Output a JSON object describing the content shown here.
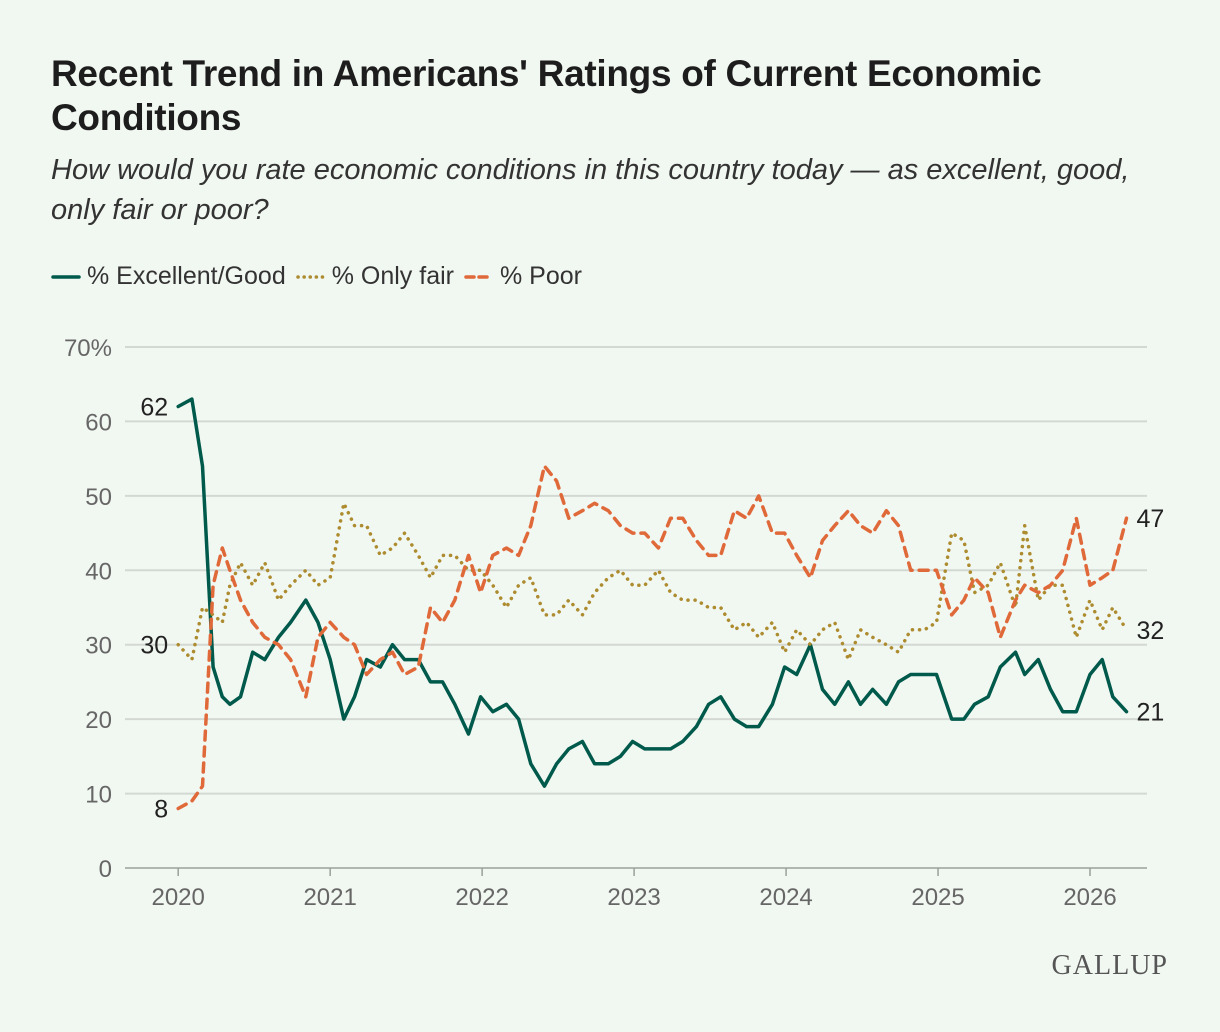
{
  "chart_data": {
    "type": "line",
    "title": "Recent Trend in Americans' Ratings of Current Economic Conditions",
    "subtitle": "How would you rate economic conditions in this country today — as excellent, good, only fair or poor?",
    "xlabel": "",
    "ylabel": "",
    "xlim": [
      2019.65,
      2026.375
    ],
    "ylim": [
      0,
      70
    ],
    "grid": true,
    "legend_position": "top-left",
    "x_ticks": [
      "2020",
      "2021",
      "2022",
      "2023",
      "2024",
      "2025",
      "2026"
    ],
    "y_ticks": [
      "0",
      "10",
      "20",
      "30",
      "40",
      "50",
      "60",
      "70%"
    ],
    "x": [
      2020.0,
      2020.09,
      2020.16,
      2020.23,
      2020.29,
      2020.34,
      2020.41,
      2020.49,
      2020.57,
      2020.66,
      2020.74,
      2020.84,
      2020.92,
      2021.0,
      2021.09,
      2021.16,
      2021.24,
      2021.33,
      2021.41,
      2021.49,
      2021.58,
      2021.66,
      2021.74,
      2021.82,
      2021.91,
      2021.99,
      2022.07,
      2022.16,
      2022.24,
      2022.32,
      2022.41,
      2022.49,
      2022.57,
      2022.66,
      2022.74,
      2022.83,
      2022.91,
      2022.99,
      2023.07,
      2023.16,
      2023.24,
      2023.32,
      2023.41,
      2023.49,
      2023.57,
      2023.66,
      2023.74,
      2023.82,
      2023.91,
      2023.99,
      2024.07,
      2024.16,
      2024.24,
      2024.32,
      2024.41,
      2024.49,
      2024.57,
      2024.66,
      2024.74,
      2024.82,
      2024.91,
      2024.99,
      2025.09,
      2025.17,
      2025.24,
      2025.33,
      2025.41,
      2025.51,
      2025.57,
      2025.66,
      2025.74,
      2025.82,
      2025.91,
      2026.0,
      2026.08,
      2026.15,
      2026.24
    ],
    "series": [
      {
        "name": "% Excellent/Good",
        "color": "#005a4c",
        "style": "solid",
        "start_label": "62",
        "end_label": "21",
        "values": [
          62,
          63,
          54,
          27,
          23,
          22,
          23,
          29,
          28,
          31,
          33,
          36,
          33,
          28,
          20,
          23,
          28,
          27,
          30,
          28,
          28,
          25,
          25,
          22,
          18,
          23,
          21,
          22,
          20,
          14,
          11,
          14,
          16,
          17,
          14,
          14,
          15,
          17,
          16,
          16,
          16,
          17,
          19,
          22,
          23,
          20,
          19,
          19,
          22,
          27,
          26,
          30,
          24,
          22,
          25,
          22,
          24,
          22,
          25,
          26,
          26,
          26,
          20,
          20,
          22,
          23,
          27,
          29,
          26,
          28,
          24,
          21,
          21,
          26,
          28,
          23,
          21
        ]
      },
      {
        "name": "% Only fair",
        "color": "#ad8b2f",
        "style": "dotted",
        "start_label": "30",
        "end_label": "32",
        "values": [
          30,
          28,
          35,
          34,
          33,
          38,
          41,
          38,
          41,
          36,
          38,
          40,
          38,
          39,
          49,
          46,
          46,
          42,
          43,
          45,
          42,
          39,
          42,
          42,
          40,
          40,
          38,
          35,
          38,
          39,
          34,
          34,
          36,
          34,
          37,
          39,
          40,
          38,
          38,
          40,
          37,
          36,
          36,
          35,
          35,
          32,
          33,
          31,
          33,
          29,
          32,
          30,
          32,
          33,
          28,
          32,
          31,
          30,
          29,
          32,
          32,
          33,
          45,
          44,
          37,
          38,
          41,
          35,
          46,
          36,
          38,
          38,
          31,
          36,
          32,
          35,
          32
        ]
      },
      {
        "name": "% Poor",
        "color": "#e0693a",
        "style": "dashed",
        "start_label": "8",
        "end_label": "47",
        "values": [
          8,
          9,
          11,
          38,
          43,
          40,
          36,
          33,
          31,
          30,
          28,
          23,
          31,
          33,
          31,
          30,
          26,
          28,
          29,
          26,
          27,
          35,
          33,
          36,
          42,
          37,
          42,
          43,
          42,
          46,
          54,
          52,
          47,
          48,
          49,
          48,
          46,
          45,
          45,
          43,
          47,
          47,
          44,
          42,
          42,
          48,
          47,
          50,
          45,
          45,
          42,
          39,
          44,
          46,
          48,
          46,
          45,
          48,
          46,
          40,
          40,
          40,
          34,
          36,
          39,
          37,
          31,
          36,
          38,
          37,
          38,
          40,
          47,
          38,
          39,
          40,
          47
        ]
      }
    ]
  },
  "logo": "GALLUP"
}
